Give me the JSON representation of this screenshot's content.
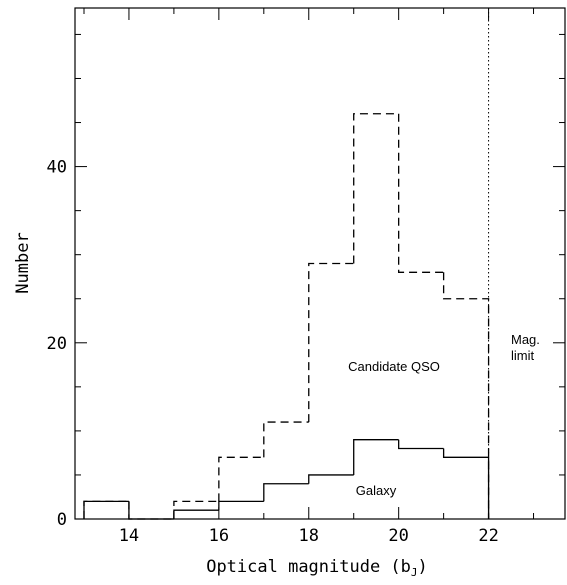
{
  "chart_data": {
    "type": "histogram",
    "title": "",
    "xlabel": "Optical magnitude (b",
    "xlabel_sub": "J",
    "xlabel_close": ")",
    "ylabel": "Number",
    "xlim": [
      12.8,
      23.7
    ],
    "ylim": [
      0,
      58
    ],
    "x_ticks": [
      14,
      16,
      18,
      20,
      22
    ],
    "y_ticks": [
      0,
      20,
      40
    ],
    "x_minor_step": 1,
    "y_minor_step": 5,
    "grid": false,
    "bin_edges": [
      13,
      14,
      15,
      16,
      17,
      18,
      19,
      20,
      21,
      22
    ],
    "series": [
      {
        "key": "qso",
        "line_style": "dashed",
        "counts": [
          2,
          0,
          2,
          7,
          11,
          29,
          46,
          28,
          25
        ]
      },
      {
        "key": "galaxy",
        "line_style": "solid",
        "counts": [
          2,
          0,
          1,
          2,
          4,
          5,
          9,
          8,
          7
        ]
      }
    ],
    "mag_limit": {
      "x": 22,
      "line_style": "dotted"
    },
    "annotations": {
      "qso_label": "Candidate QSO",
      "galaxy_label": "Galaxy",
      "mag_label_1": "Mag.",
      "mag_label_2": "limit"
    },
    "colors": {
      "line": "#000000",
      "background": "#ffffff"
    }
  }
}
